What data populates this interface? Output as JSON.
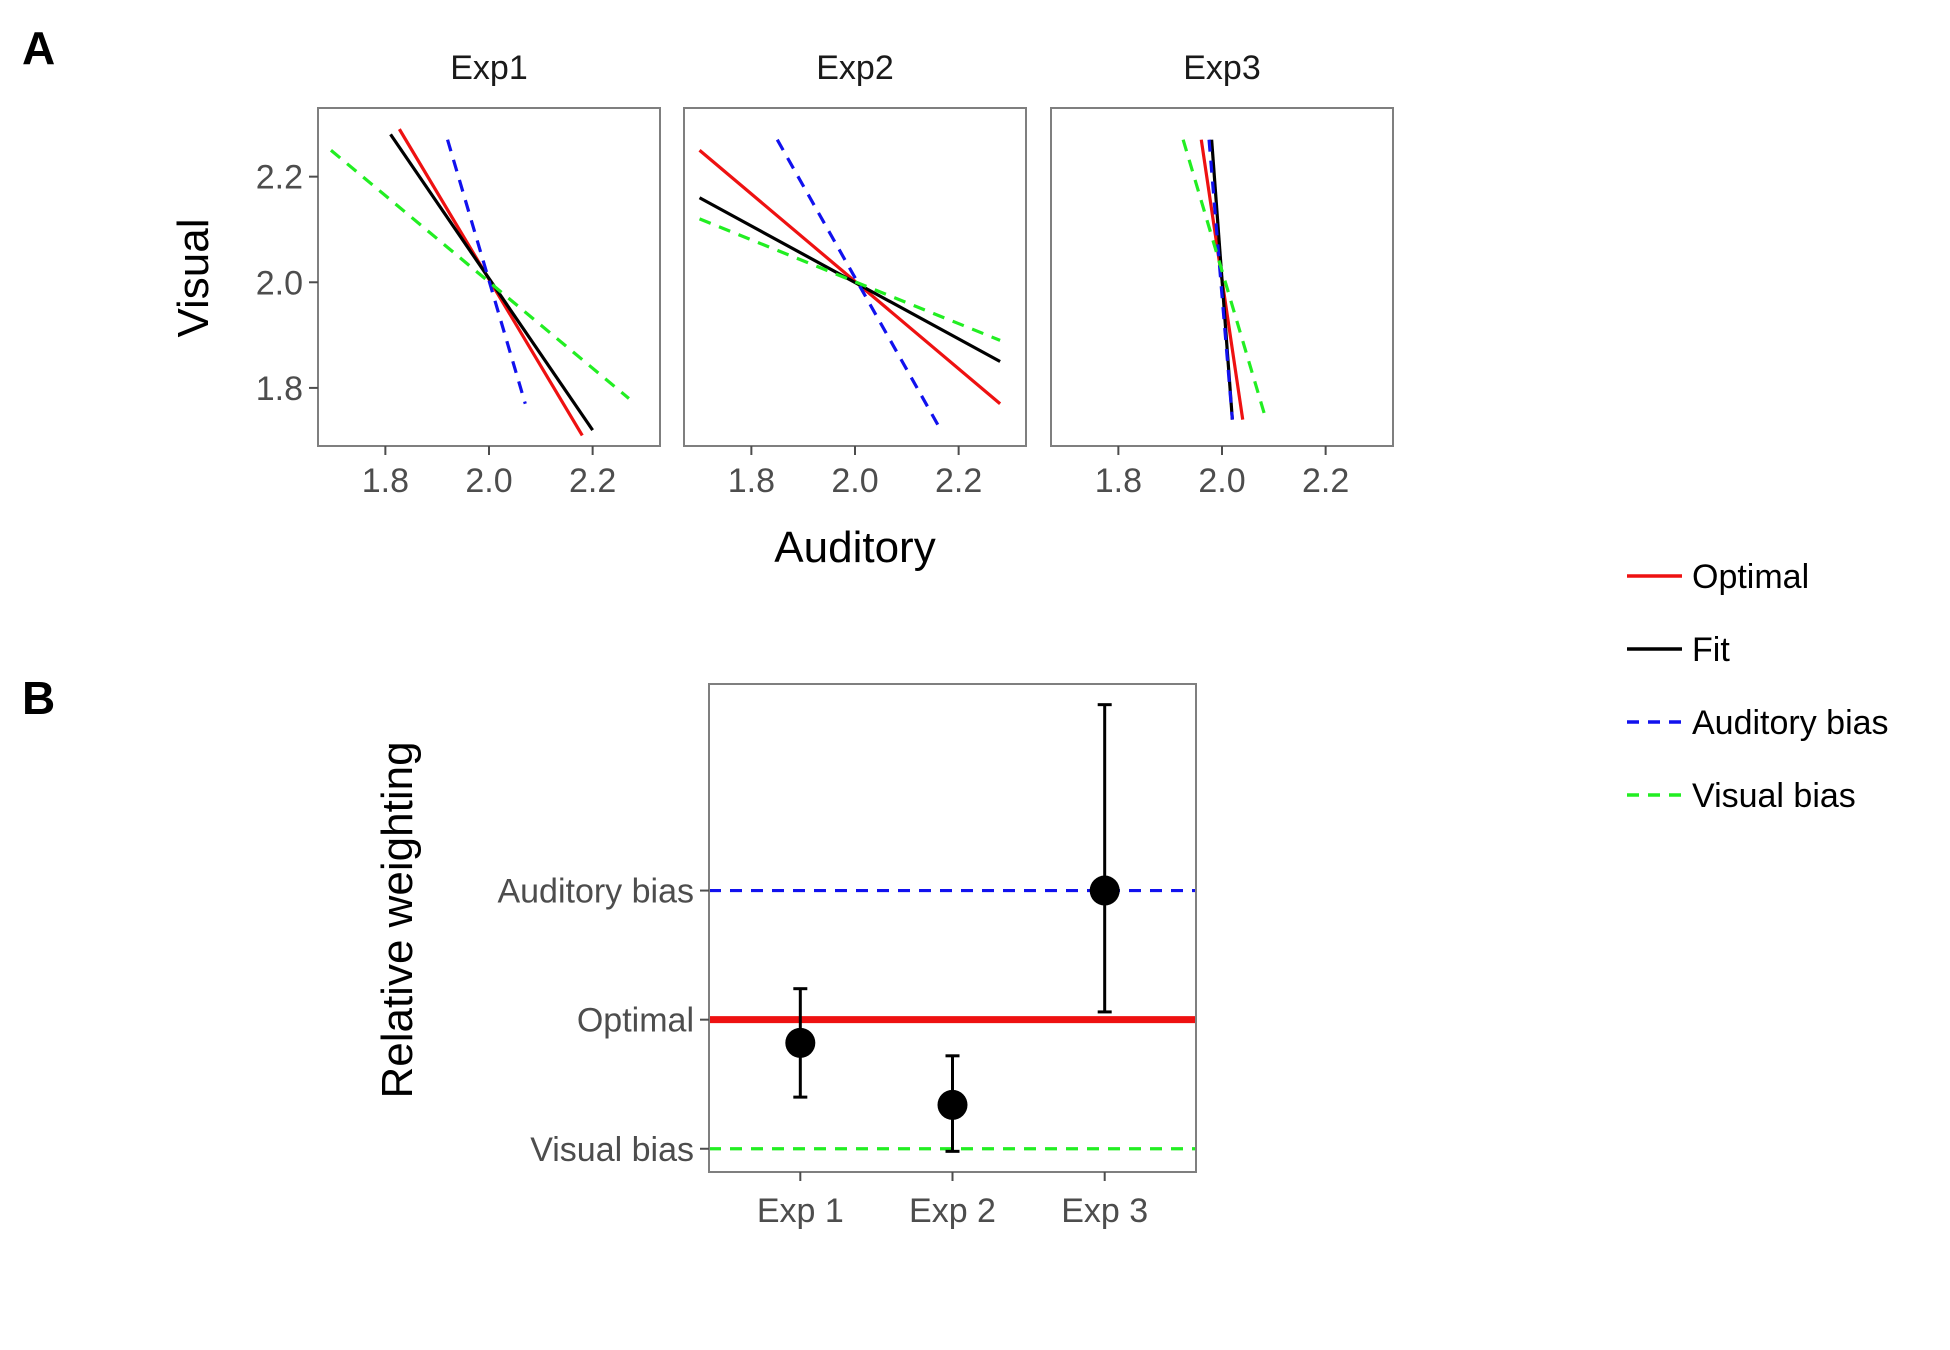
{
  "figure": {
    "panel_letters": [
      "A",
      "B"
    ]
  },
  "colors": {
    "optimal": "#ee1111",
    "fit": "#000000",
    "auditory_bias": "#1111ee",
    "visual_bias": "#22ee22"
  },
  "legend": {
    "items": [
      {
        "key": "optimal",
        "label": "Optimal",
        "dashed": false
      },
      {
        "key": "fit",
        "label": "Fit",
        "dashed": false
      },
      {
        "key": "auditory_bias",
        "label": "Auditory bias",
        "dashed": true
      },
      {
        "key": "visual_bias",
        "label": "Visual bias",
        "dashed": true
      }
    ]
  },
  "chart_data": [
    {
      "type": "line",
      "panel": "A",
      "xlabel": "Auditory",
      "ylabel": "Visual",
      "xlim": [
        1.67,
        2.33
      ],
      "ylim": [
        1.69,
        2.33
      ],
      "xticks": [
        "1.8",
        "2.0",
        "2.2"
      ],
      "yticks": [
        "1.8",
        "2.0",
        "2.2"
      ],
      "grid": false,
      "legend": "right",
      "facets": [
        {
          "title": "Exp1",
          "series": [
            {
              "name": "Optimal",
              "x": [
                1.827,
                2.18
              ],
              "y": [
                2.29,
                1.71
              ]
            },
            {
              "name": "Fit",
              "x": [
                1.81,
                2.2
              ],
              "y": [
                2.28,
                1.72
              ]
            },
            {
              "name": "Auditory bias",
              "x": [
                1.92,
                2.07
              ],
              "y": [
                2.27,
                1.77
              ]
            },
            {
              "name": "Visual bias",
              "x": [
                1.695,
                2.27
              ],
              "y": [
                2.25,
                1.78
              ]
            }
          ]
        },
        {
          "title": "Exp2",
          "series": [
            {
              "name": "Optimal",
              "x": [
                1.7,
                2.28
              ],
              "y": [
                2.25,
                1.77
              ]
            },
            {
              "name": "Fit",
              "x": [
                1.7,
                2.28
              ],
              "y": [
                2.16,
                1.85
              ]
            },
            {
              "name": "Auditory bias",
              "x": [
                1.85,
                2.16
              ],
              "y": [
                2.27,
                1.73
              ]
            },
            {
              "name": "Visual bias",
              "x": [
                1.7,
                2.28
              ],
              "y": [
                2.12,
                1.89
              ]
            }
          ]
        },
        {
          "title": "Exp3",
          "series": [
            {
              "name": "Optimal",
              "x": [
                1.96,
                2.04
              ],
              "y": [
                2.27,
                1.74
              ]
            },
            {
              "name": "Fit",
              "x": [
                1.98,
                2.02
              ],
              "y": [
                2.27,
                1.74
              ]
            },
            {
              "name": "Auditory bias",
              "x": [
                1.975,
                2.02
              ],
              "y": [
                2.27,
                1.74
              ]
            },
            {
              "name": "Visual bias",
              "x": [
                1.925,
                2.085
              ],
              "y": [
                2.27,
                1.74
              ]
            }
          ]
        }
      ]
    },
    {
      "type": "scatter",
      "panel": "B",
      "ylabel": "Relative weighting",
      "xlabel": "",
      "categories": [
        "Exp 1",
        "Exp 2",
        "Exp 3"
      ],
      "ytick_labels": [
        "Auditory bias",
        "Optimal",
        "Visual bias"
      ],
      "reference_lines": [
        {
          "name": "Auditory bias",
          "y": 1.0,
          "dashed": true
        },
        {
          "name": "Optimal",
          "y": 0.5,
          "dashed": false
        },
        {
          "name": "Visual bias",
          "y": 0.0,
          "dashed": true
        }
      ],
      "ylim": [
        -0.09,
        1.8
      ],
      "points": [
        {
          "category": "Exp 1",
          "y": 0.41,
          "lower": 0.2,
          "upper": 0.62
        },
        {
          "category": "Exp 2",
          "y": 0.17,
          "lower": -0.01,
          "upper": 0.36
        },
        {
          "category": "Exp 3",
          "y": 1.0,
          "lower": 0.53,
          "upper": 1.72
        }
      ]
    }
  ]
}
